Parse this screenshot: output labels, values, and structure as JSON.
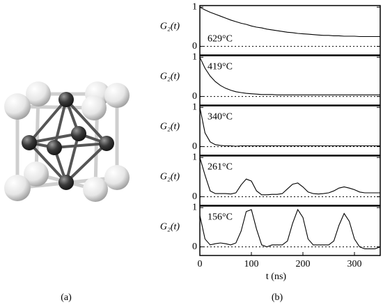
{
  "figure": {
    "panel_labels": [
      "(a)",
      "(b)"
    ]
  },
  "chart_data": [
    {
      "type": "line",
      "ylabel": "G₂(t)",
      "annotation": "629°C",
      "color": "#000000",
      "zero_line": true,
      "xlim": [
        0,
        350
      ],
      "ylim": [
        -0.22,
        1.04
      ],
      "yticks": [
        0,
        1
      ],
      "x": [
        0,
        10,
        20,
        30,
        40,
        50,
        60,
        70,
        80,
        90,
        100,
        110,
        120,
        130,
        140,
        150,
        160,
        170,
        180,
        190,
        200,
        210,
        220,
        230,
        240,
        250,
        260,
        270,
        280,
        290,
        300,
        310,
        320,
        330,
        340,
        350
      ],
      "values": [
        1.0,
        0.93,
        0.87,
        0.82,
        0.77,
        0.72,
        0.67,
        0.63,
        0.59,
        0.56,
        0.52,
        0.49,
        0.47,
        0.44,
        0.42,
        0.4,
        0.38,
        0.36,
        0.35,
        0.33,
        0.32,
        0.31,
        0.3,
        0.29,
        0.28,
        0.28,
        0.27,
        0.27,
        0.26,
        0.26,
        0.26,
        0.25,
        0.25,
        0.25,
        0.25,
        0.25
      ]
    },
    {
      "type": "line",
      "ylabel": "G₂(t)",
      "annotation": "419°C",
      "color": "#000000",
      "zero_line": true,
      "xlim": [
        0,
        350
      ],
      "ylim": [
        -0.22,
        1.04
      ],
      "yticks": [
        0,
        1
      ],
      "x": [
        0,
        10,
        20,
        30,
        40,
        50,
        60,
        70,
        80,
        90,
        100,
        110,
        120,
        130,
        140,
        150,
        160,
        170,
        180,
        190,
        200,
        210,
        220,
        230,
        240,
        250,
        260,
        270,
        280,
        290,
        300,
        310,
        320,
        330,
        340,
        350
      ],
      "values": [
        1.0,
        0.72,
        0.52,
        0.38,
        0.28,
        0.21,
        0.16,
        0.12,
        0.1,
        0.08,
        0.07,
        0.06,
        0.05,
        0.05,
        0.05,
        0.04,
        0.04,
        0.04,
        0.04,
        0.04,
        0.04,
        0.04,
        0.04,
        0.04,
        0.04,
        0.04,
        0.04,
        0.04,
        0.04,
        0.04,
        0.04,
        0.04,
        0.04,
        0.04,
        0.04,
        0.04
      ]
    },
    {
      "type": "line",
      "ylabel": "G₂(t)",
      "annotation": "340°C",
      "color": "#000000",
      "zero_line": true,
      "xlim": [
        0,
        350
      ],
      "ylim": [
        -0.22,
        1.04
      ],
      "yticks": [
        0,
        1
      ],
      "x": [
        0,
        10,
        20,
        30,
        40,
        50,
        60,
        70,
        80,
        90,
        100,
        110,
        120,
        130,
        140,
        150,
        160,
        170,
        180,
        190,
        200,
        210,
        220,
        230,
        240,
        250,
        260,
        270,
        280,
        290,
        300,
        310,
        320,
        330,
        340,
        350
      ],
      "values": [
        1.0,
        0.35,
        0.12,
        0.05,
        0.03,
        0.02,
        0.02,
        0.01,
        0.02,
        0.02,
        0.02,
        0.02,
        0.02,
        0.02,
        0.02,
        0.02,
        0.02,
        0.02,
        0.02,
        0.02,
        0.02,
        0.02,
        0.02,
        0.02,
        0.02,
        0.02,
        0.02,
        0.02,
        0.02,
        0.02,
        0.02,
        0.02,
        0.02,
        0.02,
        0.02,
        0.02
      ]
    },
    {
      "type": "line",
      "ylabel": "G₂(t)",
      "annotation": "261°C",
      "color": "#000000",
      "zero_line": true,
      "xlim": [
        0,
        350
      ],
      "ylim": [
        -0.22,
        1.04
      ],
      "yticks": [
        0,
        1
      ],
      "x": [
        0,
        10,
        20,
        30,
        40,
        50,
        60,
        70,
        80,
        90,
        100,
        110,
        120,
        130,
        140,
        150,
        160,
        170,
        180,
        190,
        200,
        210,
        220,
        230,
        240,
        250,
        260,
        270,
        280,
        290,
        300,
        310,
        320,
        330,
        340,
        350
      ],
      "values": [
        1.0,
        0.55,
        0.15,
        0.08,
        0.08,
        0.08,
        0.07,
        0.1,
        0.3,
        0.45,
        0.4,
        0.15,
        0.05,
        0.05,
        0.06,
        0.06,
        0.08,
        0.2,
        0.32,
        0.35,
        0.25,
        0.12,
        0.08,
        0.07,
        0.08,
        0.1,
        0.15,
        0.22,
        0.25,
        0.22,
        0.18,
        0.12,
        0.1,
        0.1,
        0.1,
        0.1
      ]
    },
    {
      "type": "line",
      "ylabel": "G₂(t)",
      "annotation": "156°C",
      "color": "#000000",
      "zero_line": true,
      "xlim": [
        0,
        350
      ],
      "ylim": [
        -0.22,
        1.04
      ],
      "yticks": [
        0,
        1
      ],
      "xticks": [
        0,
        100,
        200,
        300
      ],
      "xlabel": "t (ns)",
      "x": [
        0,
        10,
        20,
        30,
        40,
        50,
        60,
        70,
        80,
        90,
        100,
        110,
        120,
        130,
        140,
        150,
        160,
        170,
        180,
        190,
        200,
        210,
        220,
        230,
        240,
        250,
        260,
        270,
        280,
        290,
        300,
        310,
        320,
        330,
        340,
        350
      ],
      "values": [
        0.8,
        0.2,
        0.05,
        0.08,
        0.1,
        0.08,
        0.05,
        0.1,
        0.4,
        0.9,
        0.95,
        0.45,
        0.05,
        0.0,
        0.05,
        0.05,
        0.05,
        0.15,
        0.6,
        0.95,
        0.75,
        0.2,
        0.05,
        0.05,
        0.05,
        0.05,
        0.15,
        0.55,
        0.85,
        0.65,
        0.2,
        0.0,
        -0.05,
        -0.05,
        -0.05,
        0.0
      ]
    }
  ]
}
